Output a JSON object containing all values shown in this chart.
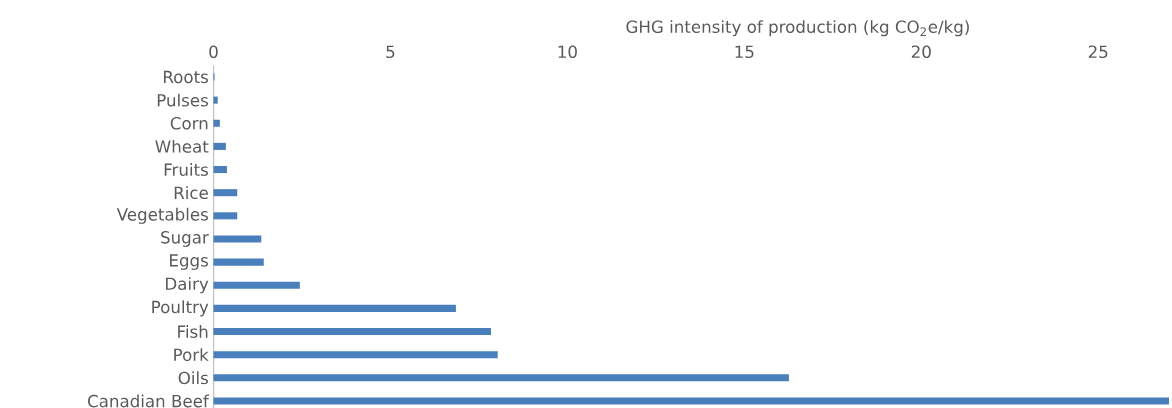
{
  "chart_data": {
    "type": "bar",
    "orientation": "horizontal",
    "xlabel": "GHG intensity of production (kg CO$_{2}$e/kg)",
    "categories": [
      "Roots",
      "Pulses",
      "Corn",
      "Wheat",
      "Fruits",
      "Rice",
      "Vegetables",
      "Sugar",
      "Eggs",
      "Dairy",
      "Poultry",
      "Fish",
      "Pork",
      "Oils",
      "Canadian Beef"
    ],
    "values": [
      0.03,
      0.12,
      0.18,
      0.35,
      0.38,
      0.67,
      0.67,
      1.35,
      1.42,
      2.44,
      6.85,
      7.84,
      8.03,
      16.26,
      27
    ],
    "color": "#4a7fbd",
    "xlim": [
      0,
      27
    ],
    "xticks": [
      0,
      5,
      10,
      15,
      20,
      25
    ]
  }
}
